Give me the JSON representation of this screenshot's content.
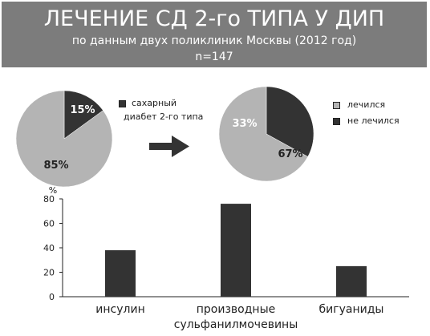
{
  "header": {
    "title": "ЛЕЧЕНИЕ СД 2-го ТИПА У ДИП",
    "subtitle": "по данным двух поликлиник Москвы (2012 год)",
    "n_label": "n=147"
  },
  "colors": {
    "dark": "#333333",
    "light": "#b4b4b4",
    "header_bg": "#7c7c7c"
  },
  "arrow_icon": "right-arrow-icon",
  "chart_data": [
    {
      "type": "pie",
      "slices": [
        {
          "label": "сахарный диабет 2-го типа",
          "value": 15,
          "value_label": "15%",
          "color": "#333333"
        },
        {
          "label": "",
          "value": 85,
          "value_label": "85%",
          "color": "#b4b4b4"
        }
      ],
      "legend": [
        "сахарный",
        "диабет 2-го типа"
      ]
    },
    {
      "type": "pie",
      "slices": [
        {
          "label": "не лечился",
          "value": 33,
          "value_label": "33%",
          "color": "#333333"
        },
        {
          "label": "лечился",
          "value": 67,
          "value_label": "67%",
          "color": "#b4b4b4"
        }
      ],
      "legend": [
        "лечился",
        "не лечился"
      ]
    },
    {
      "type": "bar",
      "ylabel": "%",
      "ylim": [
        0,
        80
      ],
      "yticks": [
        "0",
        "20",
        "40",
        "60",
        "80"
      ],
      "categories": [
        [
          "инсулин"
        ],
        [
          "производные",
          "сульфанилмочевины"
        ],
        [
          "бигуаниды"
        ]
      ],
      "values": [
        38,
        76,
        25
      ],
      "color": "#333333",
      "grid": false
    }
  ]
}
